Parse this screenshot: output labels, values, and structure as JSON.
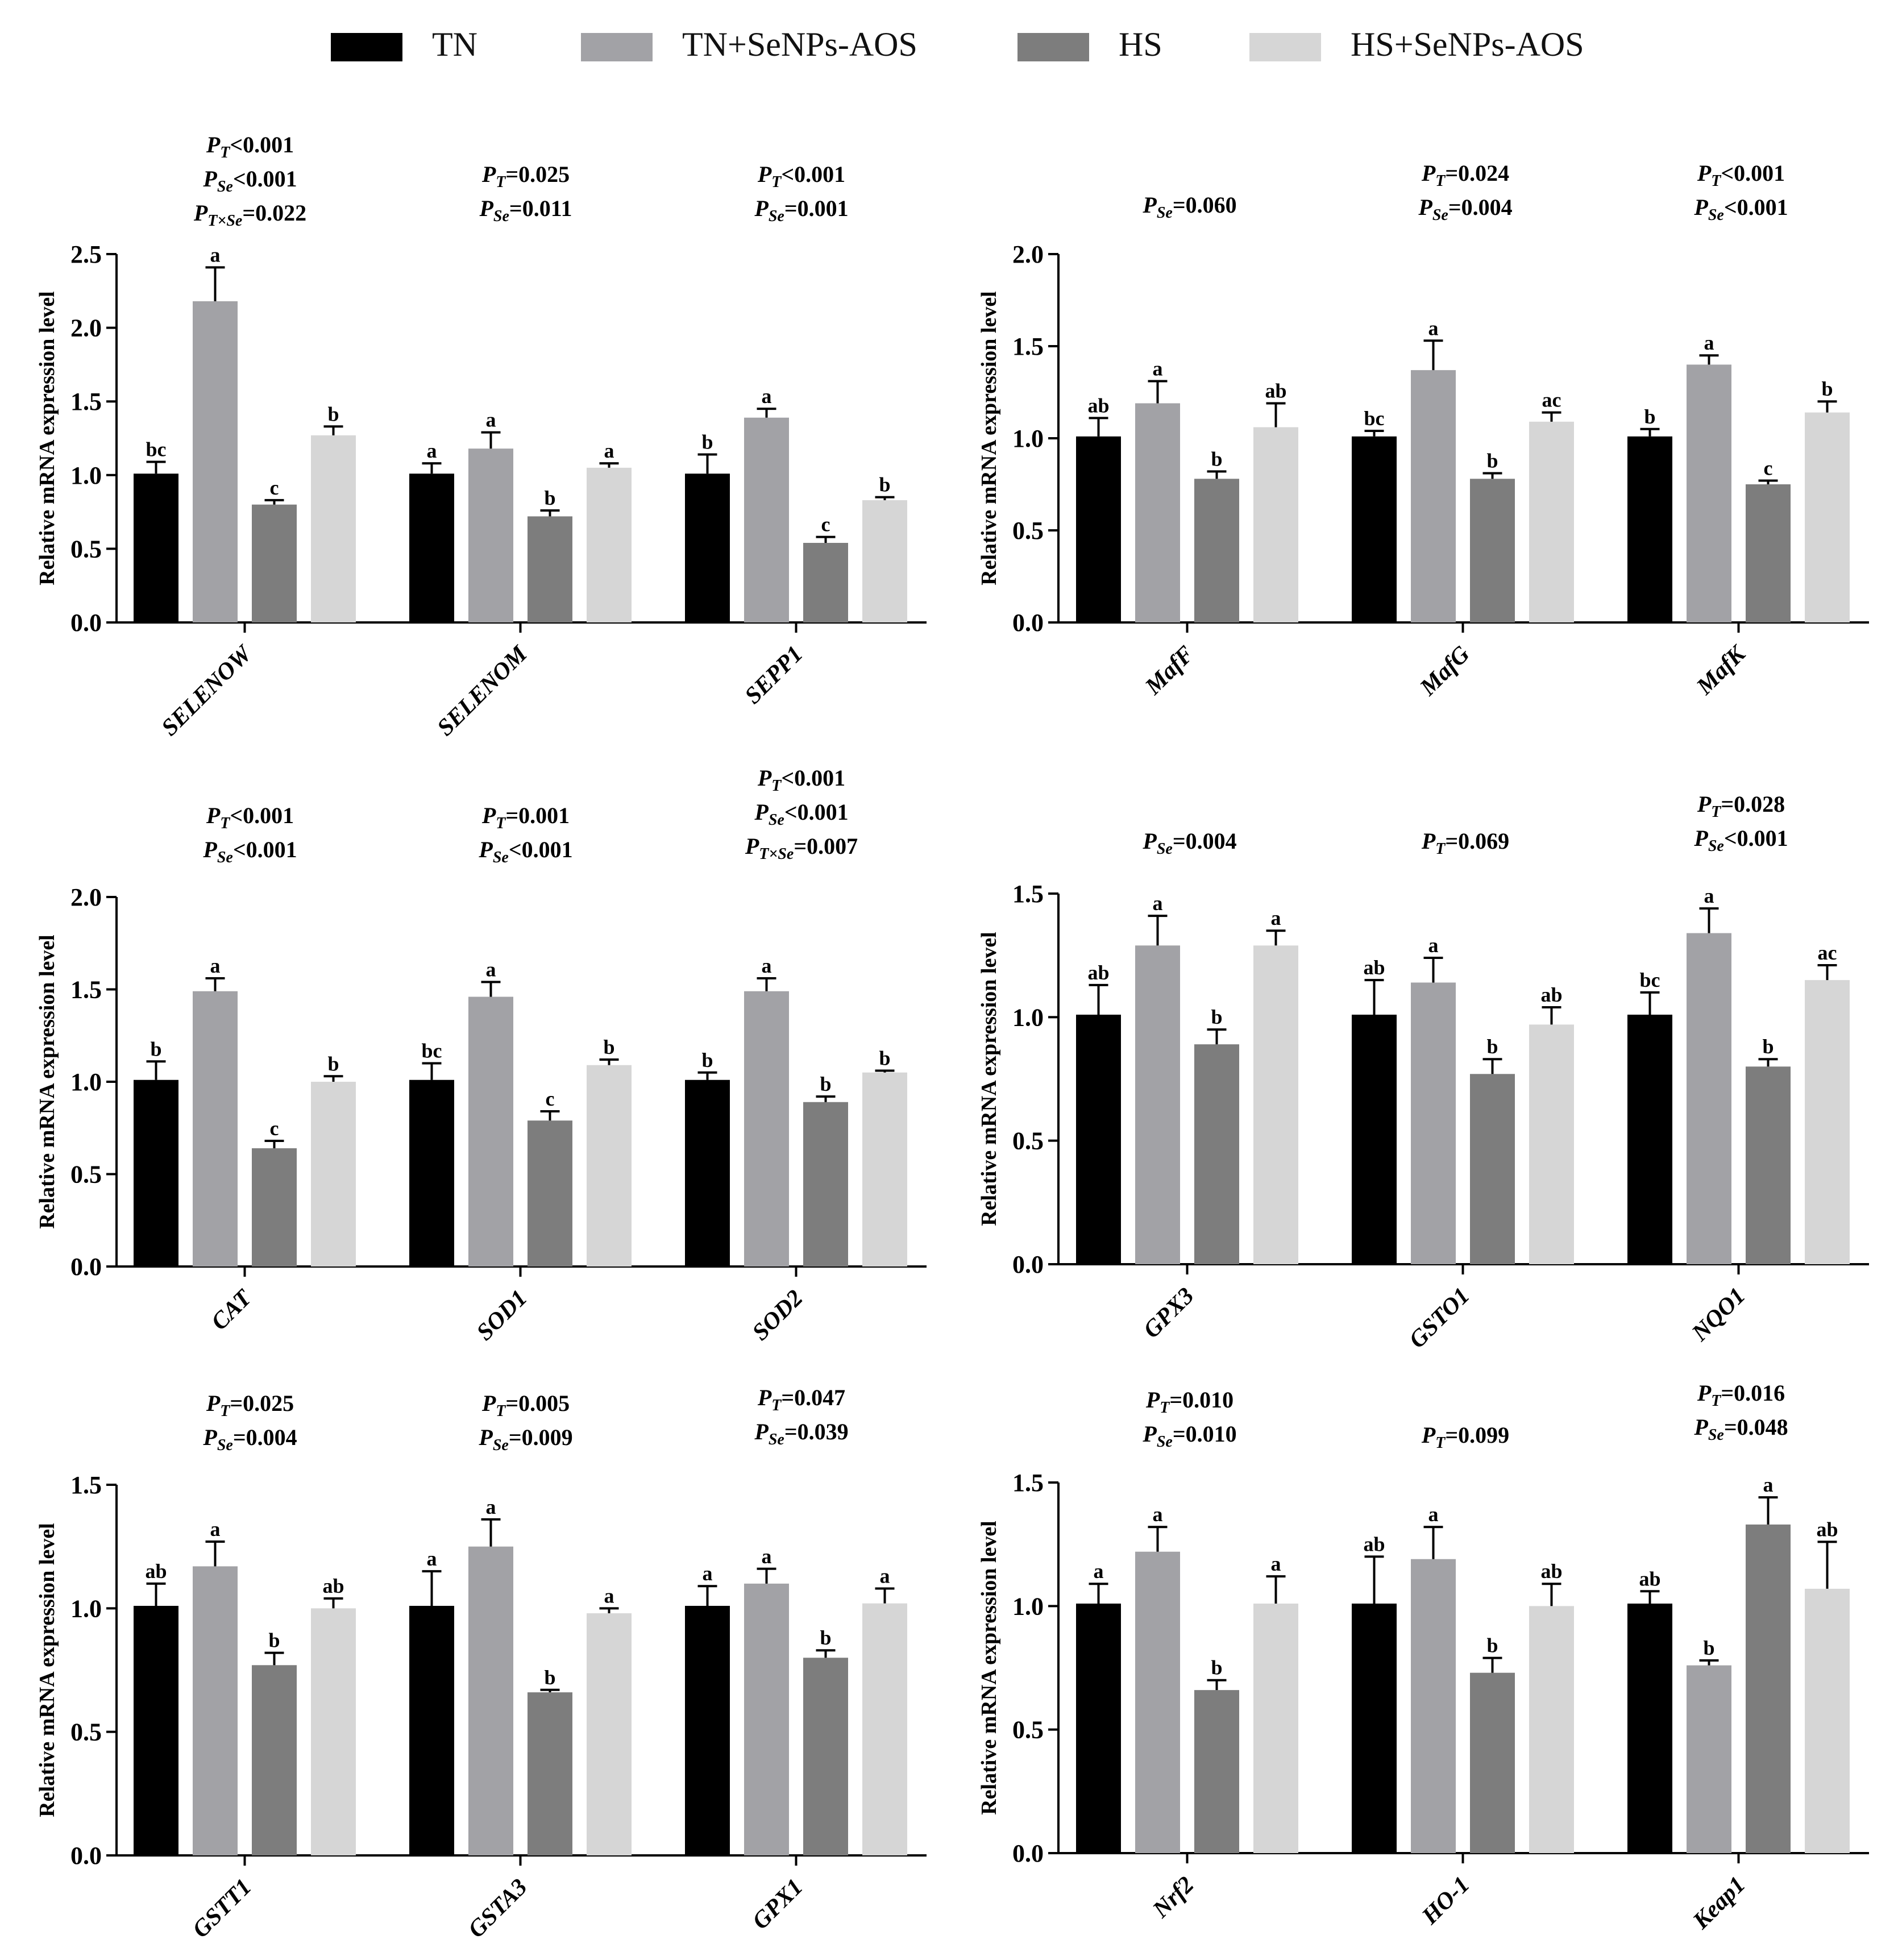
{
  "legend": {
    "items": [
      {
        "label": "TN",
        "color": "#000000"
      },
      {
        "label": "TN+SeNPs-AOS",
        "color": "#a2a2a6"
      },
      {
        "label": "HS",
        "color": "#7d7d7d"
      },
      {
        "label": "HS+SeNPs-AOS",
        "color": "#d6d6d6"
      }
    ]
  },
  "chart_data": [
    {
      "type": "bar",
      "ylabel": "Relative mRNA expression level",
      "ylim": [
        0,
        2.5
      ],
      "yticks": [
        "0.0",
        "0.5",
        "1.0",
        "1.5",
        "2.0",
        "2.5"
      ],
      "series": [
        "TN",
        "TN+SeNPs-AOS",
        "HS",
        "HS+SeNPs-AOS"
      ],
      "groups": [
        {
          "name": "SELENOW",
          "values": [
            1.01,
            2.18,
            0.8,
            1.27
          ],
          "errors": [
            0.08,
            0.23,
            0.03,
            0.06
          ],
          "letters": [
            "bc",
            "a",
            "c",
            "b"
          ],
          "stats": [
            {
              "sub": "T",
              "rel": "<",
              "val": "0.001"
            },
            {
              "sub": "Se",
              "rel": "<",
              "val": "0.001"
            },
            {
              "sub": "T×Se",
              "rel": "=",
              "val": "0.022"
            }
          ]
        },
        {
          "name": "SELENOM",
          "values": [
            1.01,
            1.18,
            0.72,
            1.05
          ],
          "errors": [
            0.07,
            0.11,
            0.04,
            0.03
          ],
          "letters": [
            "a",
            "a",
            "b",
            "a"
          ],
          "stats": [
            {
              "sub": "T",
              "rel": "=",
              "val": "0.025"
            },
            {
              "sub": "Se",
              "rel": "=",
              "val": "0.011"
            }
          ]
        },
        {
          "name": "SEPP1",
          "values": [
            1.01,
            1.39,
            0.54,
            0.83
          ],
          "errors": [
            0.13,
            0.06,
            0.04,
            0.02
          ],
          "letters": [
            "b",
            "a",
            "c",
            "b"
          ],
          "stats": [
            {
              "sub": "T",
              "rel": "<",
              "val": "0.001"
            },
            {
              "sub": "Se",
              "rel": "=",
              "val": "0.001"
            }
          ]
        }
      ]
    },
    {
      "type": "bar",
      "ylabel": "Relative mRNA expression level",
      "ylim": [
        0,
        2.0
      ],
      "yticks": [
        "0.0",
        "0.5",
        "1.0",
        "1.5",
        "2.0"
      ],
      "series": [
        "TN",
        "TN+SeNPs-AOS",
        "HS",
        "HS+SeNPs-AOS"
      ],
      "groups": [
        {
          "name": "MafF",
          "values": [
            1.01,
            1.19,
            0.78,
            1.06
          ],
          "errors": [
            0.1,
            0.12,
            0.04,
            0.13
          ],
          "letters": [
            "ab",
            "a",
            "b",
            "ab"
          ],
          "stats": [
            {
              "sub": "Se",
              "rel": "=",
              "val": "0.060"
            }
          ]
        },
        {
          "name": "MafG",
          "values": [
            1.01,
            1.37,
            0.78,
            1.09
          ],
          "errors": [
            0.03,
            0.16,
            0.03,
            0.05
          ],
          "letters": [
            "bc",
            "a",
            "b",
            "ac"
          ],
          "stats": [
            {
              "sub": "T",
              "rel": "=",
              "val": "0.024"
            },
            {
              "sub": "Se",
              "rel": "=",
              "val": "0.004"
            }
          ]
        },
        {
          "name": "MafK",
          "values": [
            1.01,
            1.4,
            0.75,
            1.14
          ],
          "errors": [
            0.04,
            0.05,
            0.02,
            0.06
          ],
          "letters": [
            "b",
            "a",
            "c",
            "b"
          ],
          "stats": [
            {
              "sub": "T",
              "rel": "<",
              "val": "0.001"
            },
            {
              "sub": "Se",
              "rel": "<",
              "val": "0.001"
            }
          ]
        }
      ]
    },
    {
      "type": "bar",
      "ylabel": "Relative mRNA expression level",
      "ylim": [
        0,
        2.0
      ],
      "yticks": [
        "0.0",
        "0.5",
        "1.0",
        "1.5",
        "2.0"
      ],
      "series": [
        "TN",
        "TN+SeNPs-AOS",
        "HS",
        "HS+SeNPs-AOS"
      ],
      "groups": [
        {
          "name": "CAT",
          "values": [
            1.01,
            1.49,
            0.64,
            1.0
          ],
          "errors": [
            0.1,
            0.07,
            0.04,
            0.03
          ],
          "letters": [
            "b",
            "a",
            "c",
            "b"
          ],
          "stats": [
            {
              "sub": "T",
              "rel": "<",
              "val": "0.001"
            },
            {
              "sub": "Se",
              "rel": "<",
              "val": "0.001"
            }
          ]
        },
        {
          "name": "SOD1",
          "values": [
            1.01,
            1.46,
            0.79,
            1.09
          ],
          "errors": [
            0.09,
            0.08,
            0.05,
            0.03
          ],
          "letters": [
            "bc",
            "a",
            "c",
            "b"
          ],
          "stats": [
            {
              "sub": "T",
              "rel": "=",
              "val": "0.001"
            },
            {
              "sub": "Se",
              "rel": "<",
              "val": "0.001"
            }
          ]
        },
        {
          "name": "SOD2",
          "values": [
            1.01,
            1.49,
            0.89,
            1.05
          ],
          "errors": [
            0.04,
            0.07,
            0.03,
            0.01
          ],
          "letters": [
            "b",
            "a",
            "b",
            "b"
          ],
          "stats": [
            {
              "sub": "T",
              "rel": "<",
              "val": "0.001"
            },
            {
              "sub": "Se",
              "rel": "<",
              "val": "0.001"
            },
            {
              "sub": "T×Se",
              "rel": "=",
              "val": "0.007"
            }
          ]
        }
      ]
    },
    {
      "type": "bar",
      "ylabel": "Relative mRNA expression level",
      "ylim": [
        0,
        1.5
      ],
      "yticks": [
        "0.0",
        "0.5",
        "1.0",
        "1.5"
      ],
      "series": [
        "TN",
        "TN+SeNPs-AOS",
        "HS",
        "HS+SeNPs-AOS"
      ],
      "groups": [
        {
          "name": "GPX3",
          "values": [
            1.01,
            1.29,
            0.89,
            1.29
          ],
          "errors": [
            0.12,
            0.12,
            0.06,
            0.06
          ],
          "letters": [
            "ab",
            "a",
            "b",
            "a"
          ],
          "stats": [
            {
              "sub": "Se",
              "rel": "=",
              "val": "0.004"
            }
          ]
        },
        {
          "name": "GSTO1",
          "values": [
            1.01,
            1.14,
            0.77,
            0.97
          ],
          "errors": [
            0.14,
            0.1,
            0.06,
            0.07
          ],
          "letters": [
            "ab",
            "a",
            "b",
            "ab"
          ],
          "stats": [
            {
              "sub": "T",
              "rel": "=",
              "val": "0.069"
            }
          ]
        },
        {
          "name": "NQO1",
          "values": [
            1.01,
            1.34,
            0.8,
            1.15
          ],
          "errors": [
            0.09,
            0.1,
            0.03,
            0.06
          ],
          "letters": [
            "bc",
            "a",
            "b",
            "ac"
          ],
          "stats": [
            {
              "sub": "T",
              "rel": "=",
              "val": "0.028"
            },
            {
              "sub": "Se",
              "rel": "<",
              "val": "0.001"
            }
          ]
        }
      ]
    },
    {
      "type": "bar",
      "ylabel": "Relative mRNA expression level",
      "ylim": [
        0,
        1.5
      ],
      "yticks": [
        "0.0",
        "0.5",
        "1.0",
        "1.5"
      ],
      "series": [
        "TN",
        "TN+SeNPs-AOS",
        "HS",
        "HS+SeNPs-AOS"
      ],
      "groups": [
        {
          "name": "GSTT1",
          "values": [
            1.01,
            1.17,
            0.77,
            1.0
          ],
          "errors": [
            0.09,
            0.1,
            0.05,
            0.04
          ],
          "letters": [
            "ab",
            "a",
            "b",
            "ab"
          ],
          "stats": [
            {
              "sub": "T",
              "rel": "=",
              "val": "0.025"
            },
            {
              "sub": "Se",
              "rel": "=",
              "val": "0.004"
            }
          ]
        },
        {
          "name": "GSTA3",
          "values": [
            1.01,
            1.25,
            0.66,
            0.98
          ],
          "errors": [
            0.14,
            0.11,
            0.01,
            0.02
          ],
          "letters": [
            "a",
            "a",
            "b",
            "a"
          ],
          "stats": [
            {
              "sub": "T",
              "rel": "=",
              "val": "0.005"
            },
            {
              "sub": "Se",
              "rel": "=",
              "val": "0.009"
            }
          ]
        },
        {
          "name": "GPX1",
          "values": [
            1.01,
            1.1,
            0.8,
            1.02
          ],
          "errors": [
            0.08,
            0.06,
            0.03,
            0.06
          ],
          "letters": [
            "a",
            "a",
            "b",
            "a"
          ],
          "stats": [
            {
              "sub": "T",
              "rel": "=",
              "val": "0.047"
            },
            {
              "sub": "Se",
              "rel": "=",
              "val": "0.039"
            }
          ]
        }
      ]
    },
    {
      "type": "bar",
      "ylabel": "Relative mRNA expression level",
      "ylim": [
        0,
        1.5
      ],
      "yticks": [
        "0.0",
        "0.5",
        "1.0",
        "1.5"
      ],
      "series": [
        "TN",
        "TN+SeNPs-AOS",
        "HS",
        "HS+SeNPs-AOS"
      ],
      "groups": [
        {
          "name": "Nrf2",
          "values": [
            1.01,
            1.22,
            0.66,
            1.01
          ],
          "errors": [
            0.08,
            0.1,
            0.04,
            0.11
          ],
          "letters": [
            "a",
            "a",
            "b",
            "a"
          ],
          "stats": [
            {
              "sub": "T",
              "rel": "=",
              "val": "0.010"
            },
            {
              "sub": "Se",
              "rel": "=",
              "val": "0.010"
            }
          ]
        },
        {
          "name": "HO-1",
          "values": [
            1.01,
            1.19,
            0.73,
            1.0
          ],
          "errors": [
            0.19,
            0.13,
            0.06,
            0.09
          ],
          "letters": [
            "ab",
            "a",
            "b",
            "ab"
          ],
          "stats": [
            {
              "sub": "T",
              "rel": "=",
              "val": "0.099"
            }
          ]
        },
        {
          "name": "Keap1",
          "values": [
            1.01,
            0.76,
            1.33,
            1.07
          ],
          "errors": [
            0.05,
            0.02,
            0.11,
            0.19
          ],
          "letters": [
            "ab",
            "b",
            "a",
            "ab"
          ],
          "stats": [
            {
              "sub": "T",
              "rel": "=",
              "val": "0.016"
            },
            {
              "sub": "Se",
              "rel": "=",
              "val": "0.048"
            }
          ]
        }
      ]
    }
  ]
}
